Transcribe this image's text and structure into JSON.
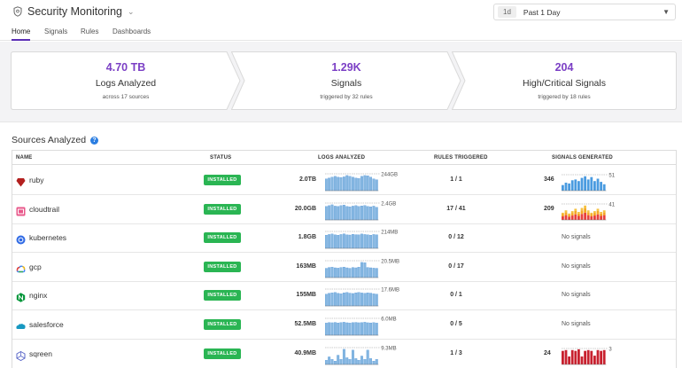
{
  "header": {
    "title": "Security Monitoring",
    "time_badge": "1d",
    "time_range": "Past 1 Day"
  },
  "tabs": [
    {
      "label": "Home",
      "active": true
    },
    {
      "label": "Signals",
      "active": false
    },
    {
      "label": "Rules",
      "active": false
    },
    {
      "label": "Dashboards",
      "active": false
    }
  ],
  "summary": [
    {
      "value": "4.70 TB",
      "label": "Logs Analyzed",
      "sub": "across 17 sources"
    },
    {
      "value": "1.29K",
      "label": "Signals",
      "sub": "triggered by 32 rules"
    },
    {
      "value": "204",
      "label": "High/Critical Signals",
      "sub": "triggered by 18 rules"
    }
  ],
  "sources": {
    "title": "Sources Analyzed",
    "columns": [
      "NAME",
      "STATUS",
      "LOGS ANALYZED",
      "RULES TRIGGERED",
      "SIGNALS GENERATED"
    ],
    "rows": [
      {
        "name": "ruby",
        "icon": "ruby-icon",
        "status": "INSTALLED",
        "logs": "2.0TB",
        "logs_max": "244GB",
        "rules": "1 / 1",
        "signals": "346",
        "signals_max": "51",
        "logs_bars": [
          0.7,
          0.75,
          0.8,
          0.85,
          0.8,
          0.78,
          0.82,
          0.9,
          0.85,
          0.8,
          0.75,
          0.72,
          0.85,
          0.9,
          0.88,
          0.8,
          0.7,
          0.65
        ],
        "signal_bars": [
          0.35,
          0.5,
          0.45,
          0.65,
          0.7,
          0.6,
          0.8,
          0.9,
          0.7,
          0.85,
          0.6,
          0.75,
          0.55,
          0.4
        ],
        "signal_colors": [
          "#4a9be0"
        ]
      },
      {
        "name": "cloudtrail",
        "icon": "cloudtrail-icon",
        "status": "INSTALLED",
        "logs": "20.0GB",
        "logs_max": "2.4GB",
        "rules": "17 / 41",
        "signals": "209",
        "signals_max": "41",
        "logs_bars": [
          0.8,
          0.85,
          0.9,
          0.82,
          0.8,
          0.85,
          0.88,
          0.8,
          0.78,
          0.82,
          0.85,
          0.8,
          0.83,
          0.86,
          0.8,
          0.78,
          0.82,
          0.75
        ],
        "signal_bars": [
          0.45,
          0.6,
          0.4,
          0.55,
          0.7,
          0.5,
          0.75,
          0.9,
          0.6,
          0.45,
          0.55,
          0.7,
          0.5,
          0.6
        ],
        "signal_colors": [
          "#e8403c",
          "#f5a623",
          "#f5c242"
        ]
      },
      {
        "name": "kubernetes",
        "icon": "kubernetes-icon",
        "status": "INSTALLED",
        "logs": "1.8GB",
        "logs_max": "214MB",
        "rules": "0 / 12",
        "signals": "No signals",
        "logs_bars": [
          0.78,
          0.82,
          0.85,
          0.8,
          0.78,
          0.82,
          0.86,
          0.8,
          0.79,
          0.83,
          0.81,
          0.8,
          0.85,
          0.82,
          0.8,
          0.78,
          0.82,
          0.8
        ]
      },
      {
        "name": "gcp",
        "icon": "gcp-icon",
        "status": "INSTALLED",
        "logs": "163MB",
        "logs_max": "20.5MB",
        "rules": "0 / 17",
        "signals": "No signals",
        "logs_bars": [
          0.55,
          0.6,
          0.62,
          0.58,
          0.56,
          0.6,
          0.62,
          0.58,
          0.55,
          0.6,
          0.58,
          0.62,
          0.9,
          0.88,
          0.6,
          0.58,
          0.56,
          0.55
        ]
      },
      {
        "name": "nginx",
        "icon": "nginx-icon",
        "status": "INSTALLED",
        "logs": "155MB",
        "logs_max": "17.6MB",
        "rules": "0 / 1",
        "signals": "No signals",
        "logs_bars": [
          0.7,
          0.75,
          0.78,
          0.8,
          0.75,
          0.72,
          0.78,
          0.8,
          0.76,
          0.74,
          0.78,
          0.8,
          0.77,
          0.75,
          0.78,
          0.76,
          0.72,
          0.7
        ]
      },
      {
        "name": "salesforce",
        "icon": "salesforce-icon",
        "status": "INSTALLED",
        "logs": "52.5MB",
        "logs_max": "6.0MB",
        "rules": "0 / 5",
        "signals": "No signals",
        "logs_bars": [
          0.72,
          0.75,
          0.74,
          0.76,
          0.73,
          0.75,
          0.77,
          0.74,
          0.72,
          0.75,
          0.76,
          0.74,
          0.75,
          0.77,
          0.74,
          0.73,
          0.75,
          0.72
        ]
      },
      {
        "name": "sqreen",
        "icon": "sqreen-icon",
        "status": "INSTALLED",
        "logs": "40.9MB",
        "logs_max": "9.3MB",
        "rules": "1 / 3",
        "signals": "24",
        "signals_max": "3",
        "logs_bars": [
          0.25,
          0.45,
          0.3,
          0.2,
          0.55,
          0.3,
          0.9,
          0.4,
          0.3,
          0.85,
          0.35,
          0.25,
          0.5,
          0.3,
          0.85,
          0.35,
          0.2,
          0.3
        ],
        "signal_bars": [
          0.85,
          0.9,
          0.5,
          0.9,
          0.85,
          0.95,
          0.5,
          0.85,
          0.9,
          0.85,
          0.55,
          0.9,
          0.85,
          0.9
        ],
        "signal_colors": [
          "#c8202e"
        ]
      }
    ]
  },
  "colors": {
    "accent": "#7b3fc5",
    "installed": "#2ab553",
    "bars": "#86b7e0",
    "bar_edge": "#4a90d9"
  }
}
